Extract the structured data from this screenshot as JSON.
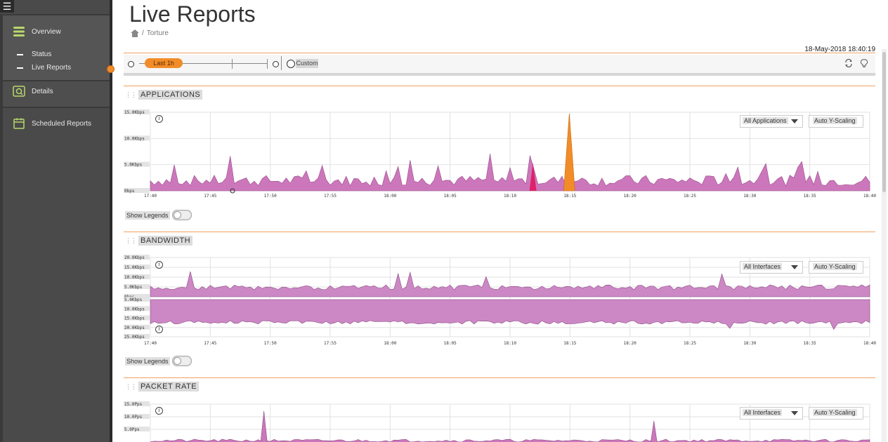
{
  "sidebar": {
    "menu_icon": "hamburger-icon",
    "items": [
      {
        "label": "Overview",
        "icon": "overview-icon"
      },
      {
        "label": "Details",
        "icon": "details-icon"
      },
      {
        "label": "Scheduled Reports",
        "icon": "calendar-icon"
      }
    ],
    "subitems": [
      {
        "label": "Status"
      },
      {
        "label": "Live Reports",
        "active": true
      }
    ],
    "accent_color": "#f28c28"
  },
  "header": {
    "title": "Live Reports",
    "breadcrumb_home_icon": "home-icon",
    "breadcrumb_separator": "/",
    "breadcrumb_current": "Torture",
    "timestamp": "18-May-2018 18:40:19"
  },
  "timebar": {
    "preset_label": "Last 1h",
    "custom_label": "Custom",
    "refresh_icon": "refresh-icon",
    "bulb_icon": "lightbulb-icon"
  },
  "sections": [
    {
      "title": "APPLICATIONS",
      "filter": "All Applications",
      "scaling": "Auto Y-Scaling",
      "legend_label": "Show Legends",
      "legend_on": false
    },
    {
      "title": "BANDWIDTH",
      "filter": "All Interfaces",
      "scaling": "Auto Y-Scaling",
      "legend_label": "Show Legends",
      "legend_on": false
    },
    {
      "title": "PACKET RATE",
      "filter": "All Interfaces",
      "scaling": "Auto Y-Scaling"
    }
  ],
  "chart_data": [
    {
      "type": "area",
      "x_ticks": [
        "17:40",
        "17:45",
        "17:50",
        "17:55",
        "18:00",
        "18:05",
        "18:10",
        "18:15",
        "18:20",
        "18:25",
        "18:30",
        "18:35",
        "18:40"
      ],
      "y_ticks": [
        "15.0Kbps",
        "10.0Kbps",
        "5.0Kbps",
        "0bps"
      ],
      "ylim": [
        0,
        15
      ],
      "series_colors": [
        "#cc77bb",
        "#f28c28",
        "#e0206a",
        "#7ec8d8"
      ]
    },
    {
      "type": "area",
      "x_ticks": [
        "17:40",
        "17:45",
        "17:50",
        "17:55",
        "18:00",
        "18:05",
        "18:10",
        "18:15",
        "18:20",
        "18:25",
        "18:30",
        "18:35",
        "18:40"
      ],
      "y_ticks_upper": [
        "20.0Kbps",
        "15.0Kbps",
        "10.0Kbps",
        "5.0Kbps",
        "0bps"
      ],
      "y_ticks_lower": [
        "5.0Kbps",
        "10.0Kbps",
        "15.0Kbps",
        "20.0Kbps",
        "25.0Kbps"
      ],
      "series_colors": [
        "#cc88c4",
        "#7ec8d8"
      ]
    },
    {
      "type": "area",
      "y_ticks": [
        "15.0Pps",
        "10.0Pps",
        "5.0Pps"
      ],
      "series_colors": [
        "#cc77bb"
      ]
    }
  ]
}
